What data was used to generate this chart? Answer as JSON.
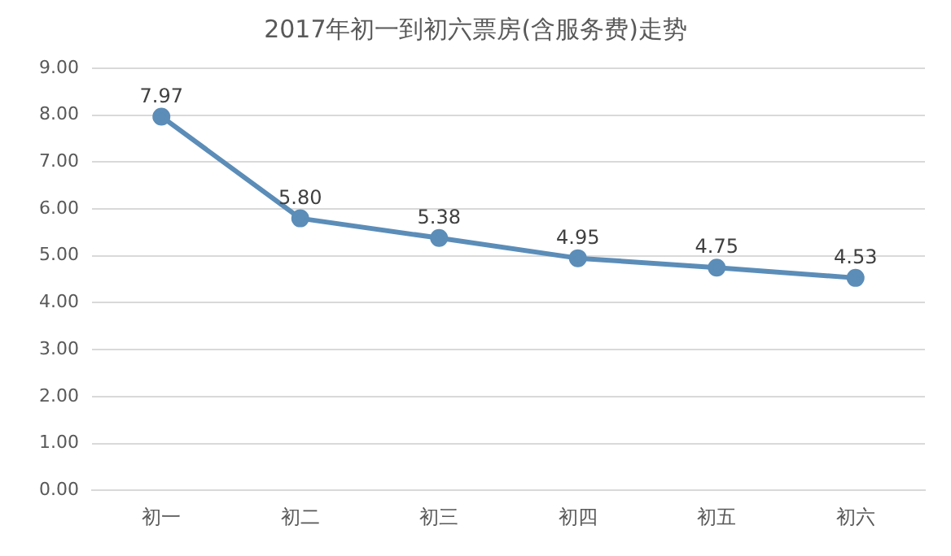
{
  "chart_data": {
    "type": "line",
    "title": "2017年初一到初六票房(含服务费)走势",
    "categories": [
      "初一",
      "初二",
      "初三",
      "初四",
      "初五",
      "初六"
    ],
    "series": [
      {
        "color": "#5b8db8",
        "values": [
          7.97,
          5.8,
          5.38,
          4.95,
          4.75,
          4.53
        ],
        "value_labels": [
          "7.97",
          "5.80",
          "5.38",
          "4.95",
          "4.75",
          "4.53"
        ]
      }
    ],
    "ylim": [
      0,
      9
    ],
    "yticks": [
      {
        "value": 0,
        "label": "0.00"
      },
      {
        "value": 1,
        "label": "1.00"
      },
      {
        "value": 2,
        "label": "2.00"
      },
      {
        "value": 3,
        "label": "3.00"
      },
      {
        "value": 4,
        "label": "4.00"
      },
      {
        "value": 5,
        "label": "5.00"
      },
      {
        "value": 6,
        "label": "6.00"
      },
      {
        "value": 7,
        "label": "7.00"
      },
      {
        "value": 8,
        "label": "8.00"
      },
      {
        "value": 9,
        "label": "9.00"
      }
    ],
    "grid": "y",
    "marker": "circle",
    "line_style": "solid",
    "legend": false
  }
}
